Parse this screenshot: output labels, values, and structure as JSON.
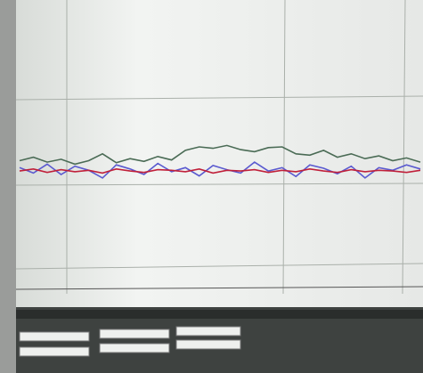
{
  "chart_data": {
    "type": "line",
    "ylim": [
      0,
      4
    ],
    "series": [
      {
        "color": "#4a6b55",
        "values": [
          1.8,
          1.85,
          1.78,
          1.82,
          1.75,
          1.8,
          1.9,
          1.77,
          1.83,
          1.79,
          1.86,
          1.81,
          1.95,
          2.0,
          1.98,
          2.02,
          1.96,
          1.93,
          1.99,
          2.0,
          1.9,
          1.88,
          1.95,
          1.85,
          1.9,
          1.83,
          1.87,
          1.8,
          1.84,
          1.78
        ]
      },
      {
        "color": "#5a5ad0",
        "values": [
          1.7,
          1.62,
          1.75,
          1.6,
          1.72,
          1.66,
          1.55,
          1.74,
          1.68,
          1.6,
          1.76,
          1.64,
          1.7,
          1.58,
          1.73,
          1.67,
          1.62,
          1.78,
          1.65,
          1.7,
          1.57,
          1.74,
          1.69,
          1.61,
          1.72,
          1.55,
          1.7,
          1.66,
          1.74,
          1.68
        ]
      },
      {
        "color": "#c0203a",
        "values": [
          1.65,
          1.68,
          1.63,
          1.67,
          1.64,
          1.66,
          1.62,
          1.68,
          1.65,
          1.63,
          1.67,
          1.66,
          1.64,
          1.68,
          1.62,
          1.66,
          1.65,
          1.67,
          1.63,
          1.66,
          1.64,
          1.68,
          1.65,
          1.63,
          1.67,
          1.64,
          1.66,
          1.65,
          1.63,
          1.66
        ]
      }
    ]
  }
}
